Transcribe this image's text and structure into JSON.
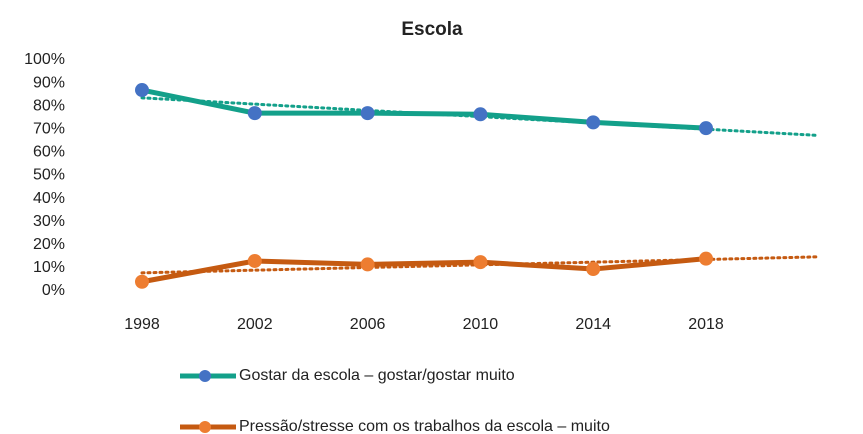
{
  "chart_data": {
    "type": "line",
    "title": "Escola",
    "categories": [
      "1998",
      "2002",
      "2006",
      "2010",
      "2014",
      "2018",
      null
    ],
    "series": [
      {
        "name": "Gostar da escola – gostar/gostar muito",
        "color": "#13a08a",
        "marker_color": "#4472c4",
        "values": [
          87,
          77,
          77,
          76.5,
          73,
          70.5,
          null
        ]
      },
      {
        "name": "Pressão/stresse com os trabalhos da escola – muito",
        "color": "#c55a11",
        "marker_color": "#ed7d31",
        "values": [
          4,
          13,
          11.5,
          12.5,
          9.5,
          14,
          null
        ]
      }
    ],
    "ylim": [
      0,
      100
    ],
    "yticks": [
      {
        "value": 0,
        "label": "0%"
      },
      {
        "value": 10,
        "label": "10%"
      },
      {
        "value": 20,
        "label": "20%"
      },
      {
        "value": 30,
        "label": "30%"
      },
      {
        "value": 40,
        "label": "40%"
      },
      {
        "value": 50,
        "label": "50%"
      },
      {
        "value": 60,
        "label": "60%"
      },
      {
        "value": 70,
        "label": "70%"
      },
      {
        "value": 80,
        "label": "80%"
      },
      {
        "value": 90,
        "label": "90%"
      },
      {
        "value": 100,
        "label": "100%"
      }
    ],
    "trendline": true,
    "legend": "bottom"
  }
}
